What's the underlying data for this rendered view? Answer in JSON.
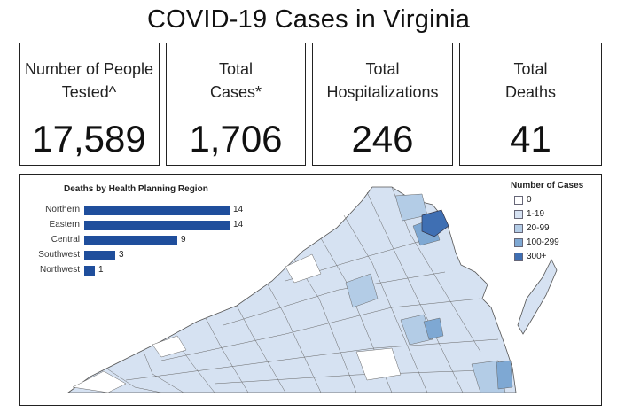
{
  "title": "COVID-19 Cases in Virginia",
  "cards": [
    {
      "label_line1": "Number of People",
      "label_line2": "Tested^",
      "value": "17,589"
    },
    {
      "label_line1": "Total",
      "label_line2": "Cases*",
      "value": "1,706"
    },
    {
      "label_line1": "Total",
      "label_line2": "Hospitalizations",
      "value": "246"
    },
    {
      "label_line1": "Total",
      "label_line2": "Deaths",
      "value": "41"
    }
  ],
  "deaths_chart": {
    "title": "Deaths by Health Planning Region",
    "bars": [
      {
        "label": "Northern",
        "value": 14
      },
      {
        "label": "Eastern",
        "value": 14
      },
      {
        "label": "Central",
        "value": 9
      },
      {
        "label": "Southwest",
        "value": 3
      },
      {
        "label": "Northwest",
        "value": 1
      }
    ]
  },
  "legend": {
    "title": "Number of Cases",
    "items": [
      {
        "label": "0",
        "color": "#ffffff"
      },
      {
        "label": "1-19",
        "color": "#d6e2f2"
      },
      {
        "label": "20-99",
        "color": "#b3cce6"
      },
      {
        "label": "100-299",
        "color": "#7ea8d3"
      },
      {
        "label": "300+",
        "color": "#3f6fb3"
      }
    ]
  },
  "chart_data": {
    "type": "bar",
    "title": "Deaths by Health Planning Region",
    "categories": [
      "Northern",
      "Eastern",
      "Central",
      "Southwest",
      "Northwest"
    ],
    "values": [
      14,
      14,
      9,
      3,
      1
    ],
    "orientation": "horizontal",
    "color": "#1f4e9c"
  }
}
